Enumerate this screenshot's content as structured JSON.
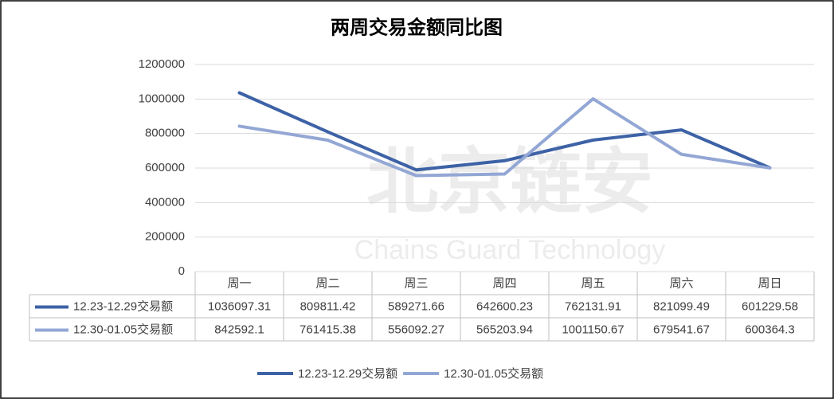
{
  "chart_data": {
    "type": "line",
    "title": "两周交易金额同比图",
    "watermark": {
      "text": "北京链安",
      "subtitle": "Chains Guard Technology"
    },
    "categories": [
      "周一",
      "周二",
      "周三",
      "周四",
      "周五",
      "周六",
      "周日"
    ],
    "series": [
      {
        "name": "12.23-12.29交易额",
        "color": "#3d62a6",
        "values": [
          1036097.31,
          809811.42,
          589271.66,
          642600.23,
          762131.91,
          821099.49,
          601229.58
        ]
      },
      {
        "name": "12.30-01.05交易额",
        "color": "#93a7d5",
        "values": [
          842592.1,
          761415.38,
          556092.27,
          565203.94,
          1001150.67,
          679541.67,
          600364.3
        ]
      }
    ],
    "ylim": [
      0,
      1200000
    ],
    "yticks": [
      0,
      200000,
      400000,
      600000,
      800000,
      1000000,
      1200000
    ],
    "grid": true,
    "legend": "bottom",
    "data_table": true
  }
}
